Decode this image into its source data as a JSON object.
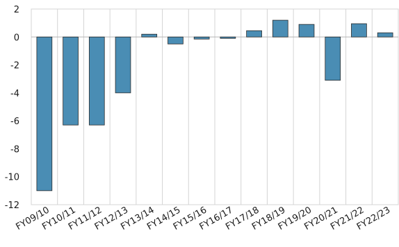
{
  "chart_data": {
    "type": "bar",
    "categories": [
      "FY09/10",
      "FY10/11",
      "FY11/12",
      "FY12/13",
      "FY13/14",
      "FY14/15",
      "FY15/16",
      "FY16/17",
      "FY17/18",
      "FY18/19",
      "FY19/20",
      "FY20/21",
      "FY21/22",
      "FY22/23"
    ],
    "values": [
      -11.0,
      -6.3,
      -6.3,
      -4.0,
      0.2,
      -0.5,
      -0.15,
      -0.1,
      0.45,
      1.2,
      0.9,
      -3.1,
      0.95,
      0.3
    ],
    "title": "",
    "xlabel": "",
    "ylabel": "",
    "ylim": [
      -12,
      2
    ],
    "yticks": [
      2,
      0,
      -2,
      -4,
      -6,
      -8,
      -10,
      -12
    ],
    "grid": false,
    "legend": "none",
    "bar_color": "#4a8db4"
  }
}
